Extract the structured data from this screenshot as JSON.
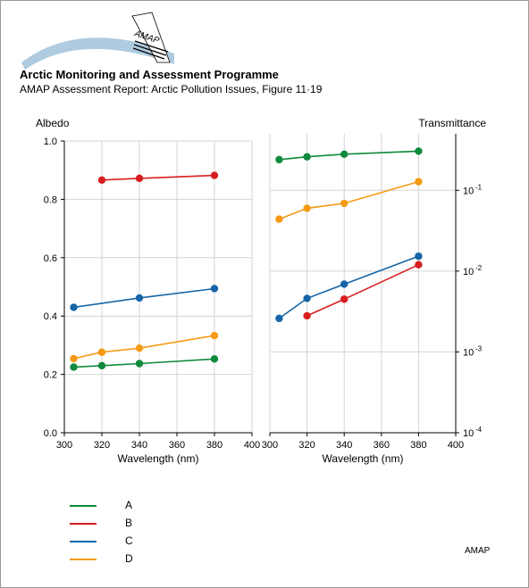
{
  "header": {
    "logo_text": "AMAP",
    "title": "Arctic Monitoring and Assessment Programme",
    "subtitle": "AMAP Assessment Report: Arctic Pollution Issues, Figure 11·19"
  },
  "footer": {
    "credit": "AMAP"
  },
  "colors": {
    "A": "#0f8a3c",
    "B": "#d71e1e",
    "C": "#1565a7",
    "D": "#f59a14"
  },
  "legend": [
    {
      "key": "A",
      "label": "A"
    },
    {
      "key": "B",
      "label": "B"
    },
    {
      "key": "C",
      "label": "C"
    },
    {
      "key": "D",
      "label": "D"
    }
  ],
  "chart_data": [
    {
      "type": "line",
      "title": "",
      "ylabel": "Albedo",
      "xlabel": "Wavelength (nm)",
      "xlim": [
        300,
        400
      ],
      "ylim": [
        0,
        1
      ],
      "xticks": [
        300,
        320,
        340,
        360,
        380,
        400
      ],
      "yticks": [
        {
          "value": 0.0,
          "label": "0.0"
        },
        {
          "value": 0.2,
          "label": "0.2"
        },
        {
          "value": 0.4,
          "label": "0.4"
        },
        {
          "value": 0.6,
          "label": "0.6"
        },
        {
          "value": 0.8,
          "label": "0.8"
        },
        {
          "value": 1.0,
          "label": "1.0"
        }
      ],
      "yscale": "linear",
      "grid": true,
      "series": [
        {
          "name": "A",
          "x": [
            305,
            320,
            340,
            380
          ],
          "y": [
            0.225,
            0.23,
            0.237,
            0.253
          ]
        },
        {
          "name": "B",
          "x": [
            320,
            340,
            380
          ],
          "y": [
            0.866,
            0.872,
            0.882
          ]
        },
        {
          "name": "C",
          "x": [
            305,
            340,
            380
          ],
          "y": [
            0.43,
            0.462,
            0.494
          ]
        },
        {
          "name": "D",
          "x": [
            305,
            320,
            340,
            380
          ],
          "y": [
            0.254,
            0.276,
            0.29,
            0.333
          ]
        }
      ]
    },
    {
      "type": "line",
      "title": "",
      "ylabel": "Transmittance",
      "xlabel": "Wavelength (nm)",
      "xlim": [
        300,
        400
      ],
      "ylim": [
        0.0001,
        0.5
      ],
      "xticks": [
        300,
        320,
        340,
        360,
        380,
        400
      ],
      "yticks": [
        {
          "value": 0.1,
          "base": "10",
          "exp": "-1"
        },
        {
          "value": 0.01,
          "base": "10",
          "exp": "-2"
        },
        {
          "value": 0.001,
          "base": "10",
          "exp": "-3"
        },
        {
          "value": 0.0001,
          "base": "10",
          "exp": "-4"
        }
      ],
      "yscale": "log",
      "grid": true,
      "series": [
        {
          "name": "A",
          "x": [
            305,
            320,
            340,
            380
          ],
          "y": [
            0.24,
            0.26,
            0.28,
            0.305
          ]
        },
        {
          "name": "B",
          "x": [
            320,
            340,
            380
          ],
          "y": [
            0.0028,
            0.0045,
            0.012
          ]
        },
        {
          "name": "C",
          "x": [
            305,
            320,
            340,
            380
          ],
          "y": [
            0.0026,
            0.0046,
            0.0069,
            0.0153
          ]
        },
        {
          "name": "D",
          "x": [
            305,
            320,
            340,
            380
          ],
          "y": [
            0.044,
            0.06,
            0.069,
            0.128
          ]
        }
      ]
    }
  ]
}
